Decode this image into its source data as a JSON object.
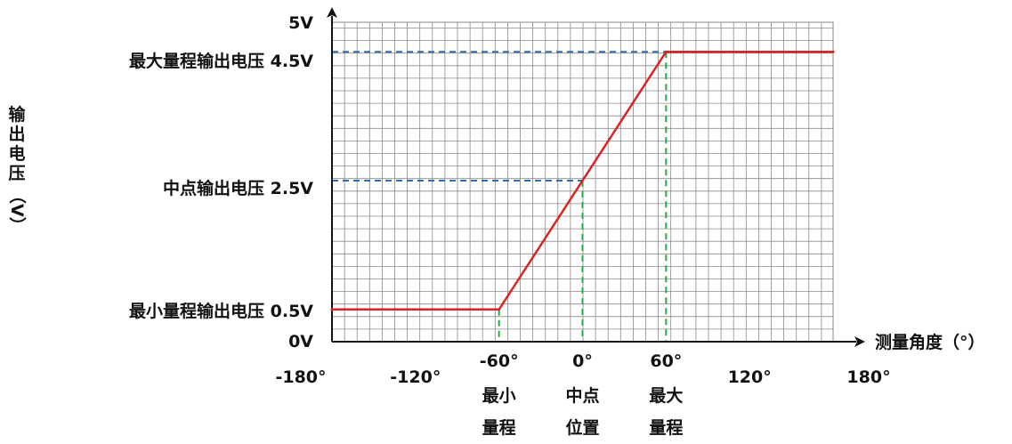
{
  "chart_data": {
    "type": "line",
    "x": [
      -180,
      -60,
      60,
      180
    ],
    "series": [
      {
        "values": [
          0.5,
          0.5,
          4.5,
          4.5
        ],
        "color": "#dd2222"
      }
    ],
    "xlim": [
      -180,
      180
    ],
    "ylim": [
      0,
      5
    ],
    "grid": true,
    "ylabel": "输出电压",
    "ylabel_unit": "（V）",
    "xlabel": "测量角度（°）",
    "y_top_label": "5V",
    "y_zero_label": "0V",
    "x_ticks": [
      {
        "value": -180,
        "label": "-180°"
      },
      {
        "value": -120,
        "label": "-120°"
      },
      {
        "value": -60,
        "label": "-60°"
      },
      {
        "value": 0,
        "label": "0°"
      },
      {
        "value": 60,
        "label": "60°"
      },
      {
        "value": 120,
        "label": "120°"
      },
      {
        "value": 180,
        "label": "180°"
      }
    ],
    "annotations": {
      "max": {
        "y": 4.5,
        "x": 60,
        "y_label": "最大量程输出电压 4.5V",
        "x_label": [
          "最大",
          "量程"
        ]
      },
      "mid": {
        "y": 2.5,
        "x": 0,
        "y_label": "中点输出电压 2.5V",
        "x_label": [
          "中点",
          "位置"
        ]
      },
      "min": {
        "y": 0.5,
        "x": -60,
        "y_label": "最小量程输出电压 0.5V",
        "x_label": [
          "最小",
          "量程"
        ]
      }
    },
    "colors": {
      "line": "#dd2222",
      "guide_h": "#2a6fb5",
      "guide_v": "#22aa44",
      "grid": "#8a8a8a",
      "axis": "#111111"
    }
  }
}
